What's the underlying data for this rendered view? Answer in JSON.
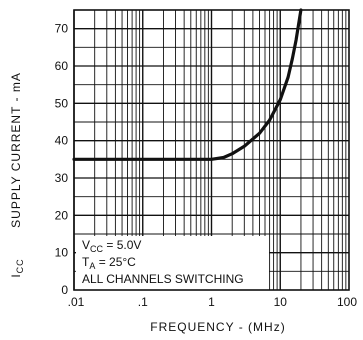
{
  "chart_data": {
    "type": "line",
    "title": "",
    "xlabel": "FREQUENCY - (MHz)",
    "ylabel": "SUPPLY CURRENT - mA",
    "ylabel_symbol": "I",
    "ylabel_symbol_sub": "CC",
    "x_scale": "log",
    "xlim": [
      0.01,
      100
    ],
    "ylim": [
      0,
      75
    ],
    "x_ticks": [
      0.01,
      0.1,
      1,
      10,
      100
    ],
    "x_tick_labels": [
      ".01",
      ".1",
      "1",
      "10",
      "100"
    ],
    "y_ticks": [
      0,
      10,
      20,
      30,
      40,
      50,
      60,
      70
    ],
    "y_tick_labels": [
      "0",
      "10",
      "20",
      "30",
      "40",
      "50",
      "60",
      "70"
    ],
    "grid": true,
    "series": [
      {
        "x": [
          0.01,
          0.1,
          0.5,
          1,
          1.5,
          2,
          3,
          5,
          7,
          10,
          13,
          15,
          17,
          20
        ],
        "y": [
          35,
          35,
          35,
          35,
          35.5,
          36.5,
          38.5,
          42,
          45.5,
          51,
          57,
          62,
          67,
          76
        ]
      }
    ],
    "annotations": {
      "vcc_symbol": "V",
      "vcc_sub": "CC",
      "vcc_value": " = 5.0V",
      "ta_symbol": "T",
      "ta_sub": "A",
      "ta_value": " = 25°C",
      "note": "ALL CHANNELS SWITCHING"
    }
  }
}
